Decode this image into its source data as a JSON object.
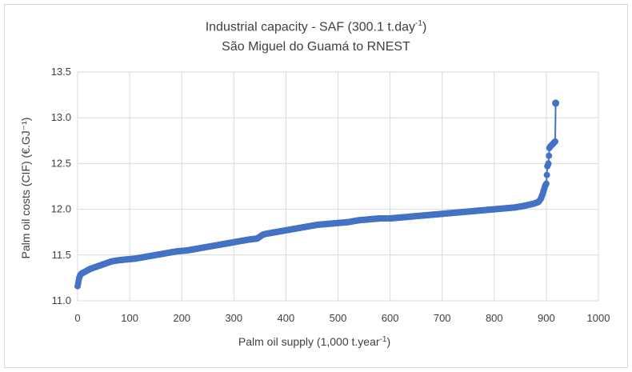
{
  "chart_data": {
    "type": "line",
    "title_line1_prefix": "Industrial capacity - SAF (300.1 t.day",
    "title_line1_sup": "-1",
    "title_line1_suffix": ")",
    "title_line2": "São Miguel do Guamá to RNEST",
    "xlabel_prefix": "Palm oil supply (1,000 t.year",
    "xlabel_sup": "-1",
    "xlabel_suffix": ")",
    "ylabel": "Palm oil costs (CIF) (€.GJ⁻¹)",
    "xlim": [
      0,
      1000
    ],
    "ylim": [
      11.0,
      13.5
    ],
    "xticks": [
      0,
      100,
      200,
      300,
      400,
      500,
      600,
      700,
      800,
      900,
      1000
    ],
    "yticks": [
      "11.0",
      "11.5",
      "12.0",
      "12.5",
      "13.0",
      "13.5"
    ],
    "grid": true,
    "series_color": "#4472c4",
    "series": [
      {
        "x": [
          0,
          1,
          2,
          3,
          5,
          8,
          12,
          18,
          25,
          35,
          45,
          55,
          65,
          75,
          90,
          110,
          130,
          150,
          170,
          190,
          210,
          230,
          250,
          270,
          290,
          310,
          330,
          345,
          350,
          355,
          360,
          370,
          380,
          400,
          420,
          440,
          460,
          480,
          500,
          520,
          540,
          560,
          580,
          600,
          620,
          640,
          660,
          680,
          700,
          720,
          740,
          760,
          780,
          800,
          820,
          840,
          860,
          875,
          885,
          890,
          893,
          896,
          898,
          900,
          902,
          904,
          906,
          908,
          912,
          915,
          917,
          918
        ],
        "y": [
          11.16,
          11.19,
          11.22,
          11.25,
          11.28,
          11.3,
          11.31,
          11.33,
          11.35,
          11.37,
          11.39,
          11.41,
          11.43,
          11.44,
          11.45,
          11.46,
          11.48,
          11.5,
          11.52,
          11.54,
          11.55,
          11.57,
          11.59,
          11.61,
          11.63,
          11.65,
          11.67,
          11.68,
          11.7,
          11.72,
          11.73,
          11.74,
          11.75,
          11.77,
          11.79,
          11.81,
          11.83,
          11.84,
          11.85,
          11.86,
          11.88,
          11.89,
          11.9,
          11.9,
          11.91,
          11.92,
          11.93,
          11.94,
          11.95,
          11.96,
          11.97,
          11.98,
          11.99,
          12.0,
          12.01,
          12.02,
          12.04,
          12.06,
          12.08,
          12.12,
          12.17,
          12.22,
          12.26,
          12.28,
          12.47,
          12.5,
          12.67,
          12.69,
          12.71,
          12.73,
          12.74,
          13.16
        ]
      }
    ]
  }
}
